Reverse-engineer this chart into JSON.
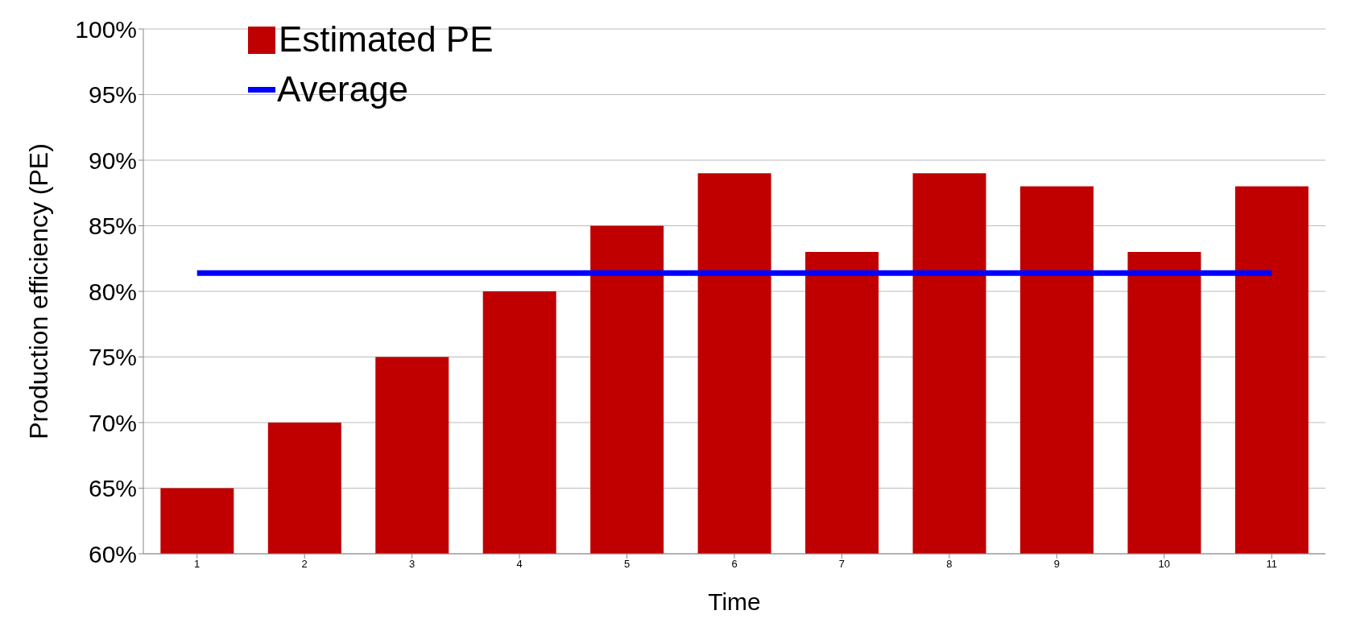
{
  "chart_data": {
    "type": "bar",
    "xlabel": "Time",
    "ylabel": "Production efficiency (PE)",
    "categories": [
      "1",
      "2",
      "3",
      "4",
      "5",
      "6",
      "7",
      "8",
      "9",
      "10",
      "11"
    ],
    "series": [
      {
        "name": "Estimated PE",
        "color": "#c00000",
        "values": [
          65,
          70,
          75,
          80,
          85,
          89,
          83,
          89,
          88,
          83,
          88
        ]
      },
      {
        "name": "Average",
        "type": "line",
        "color": "#0000ff",
        "values": [
          81.4,
          81.4,
          81.4,
          81.4,
          81.4,
          81.4,
          81.4,
          81.4,
          81.4,
          81.4,
          81.4
        ]
      }
    ],
    "ylim": [
      60,
      100
    ],
    "yticks": [
      {
        "value": 60,
        "label": "60%"
      },
      {
        "value": 65,
        "label": "65%"
      },
      {
        "value": 70,
        "label": "70%"
      },
      {
        "value": 75,
        "label": "75%"
      },
      {
        "value": 80,
        "label": "80%"
      },
      {
        "value": 85,
        "label": "85%"
      },
      {
        "value": 90,
        "label": "90%"
      },
      {
        "value": 95,
        "label": "95%"
      },
      {
        "value": 100,
        "label": "100%"
      }
    ],
    "grid": "y",
    "legend": "top left",
    "marker": "none"
  }
}
